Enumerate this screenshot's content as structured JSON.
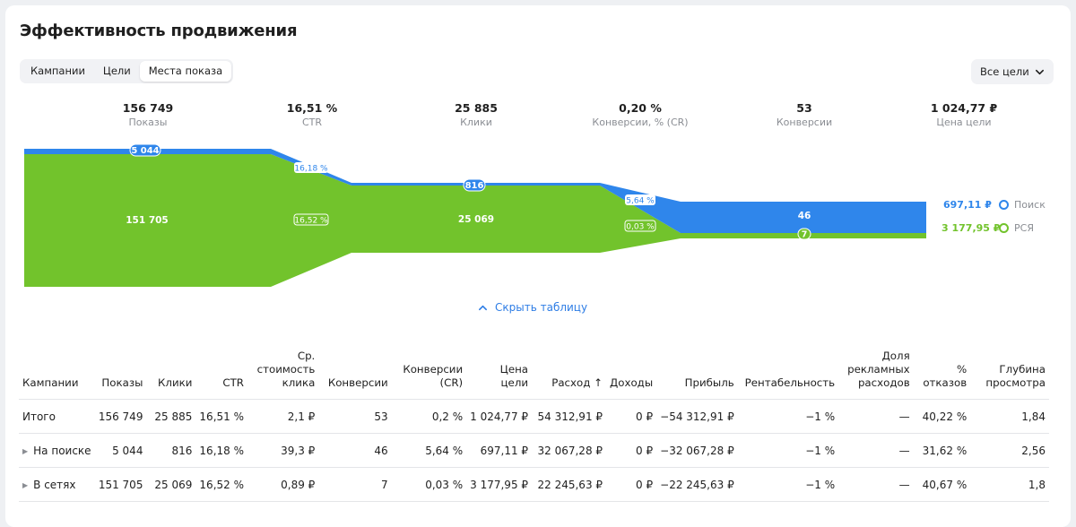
{
  "title": "Эффективность продвижения",
  "tabs": [
    "Кампании",
    "Цели",
    "Места показа"
  ],
  "active_tab": 2,
  "goals_button": "Все цели",
  "metrics": [
    {
      "value": "156 749",
      "label": "Показы"
    },
    {
      "value": "16,51 %",
      "label": "CTR"
    },
    {
      "value": "25 885",
      "label": "Клики"
    },
    {
      "value": "0,20 %",
      "label": "Конверсии, % (CR)"
    },
    {
      "value": "53",
      "label": "Конверсии"
    },
    {
      "value": "1 024,77 ₽",
      "label": "Цена цели"
    }
  ],
  "funnel": {
    "colors": {
      "search": "#2f86eb",
      "networks": "#72c32c"
    },
    "stage_labels": {
      "shows_search": "5 044",
      "shows_networks": "151 705",
      "ctr_search": "16,18 %",
      "ctr_networks": "16,52 %",
      "clicks_search": "816",
      "clicks_networks": "25 069",
      "cr_search": "5,64 %",
      "cr_networks": "0,03 %",
      "conv_search": "46",
      "conv_networks": "7"
    },
    "legend": {
      "search_price": "697,11 ₽",
      "search_label": "Поиск",
      "networks_price": "3 177,95 ₽",
      "networks_label": "РСЯ"
    }
  },
  "hide_table": "Скрыть таблицу",
  "table": {
    "headers": [
      "Кампании",
      "Показы",
      "Клики",
      "CTR",
      "Ср. стоимость клика",
      "Конверсии",
      "Конверсии (CR)",
      "Цена цели",
      "Расход ↑",
      "Доходы",
      "Прибыль",
      "Рентабельность",
      "Доля рекламных расходов",
      "% отказов",
      "Глубина просмотра"
    ],
    "rows": [
      [
        "Итого",
        "156 749",
        "25 885",
        "16,51 %",
        "2,1 ₽",
        "53",
        "0,2 %",
        "1 024,77 ₽",
        "54 312,91 ₽",
        "0 ₽",
        "−54 312,91 ₽",
        "−1 %",
        "—",
        "40,22 %",
        "1,84"
      ],
      [
        "На поиске",
        "5 044",
        "816",
        "16,18 %",
        "39,3 ₽",
        "46",
        "5,64 %",
        "697,11 ₽",
        "32 067,28 ₽",
        "0 ₽",
        "−32 067,28 ₽",
        "−1 %",
        "—",
        "31,62 %",
        "2,56"
      ],
      [
        "В сетях",
        "151 705",
        "25 069",
        "16,52 %",
        "0,89 ₽",
        "7",
        "0,03 %",
        "3 177,95 ₽",
        "22 245,63 ₽",
        "0 ₽",
        "−22 245,63 ₽",
        "−1 %",
        "—",
        "40,67 %",
        "1,8"
      ]
    ]
  }
}
